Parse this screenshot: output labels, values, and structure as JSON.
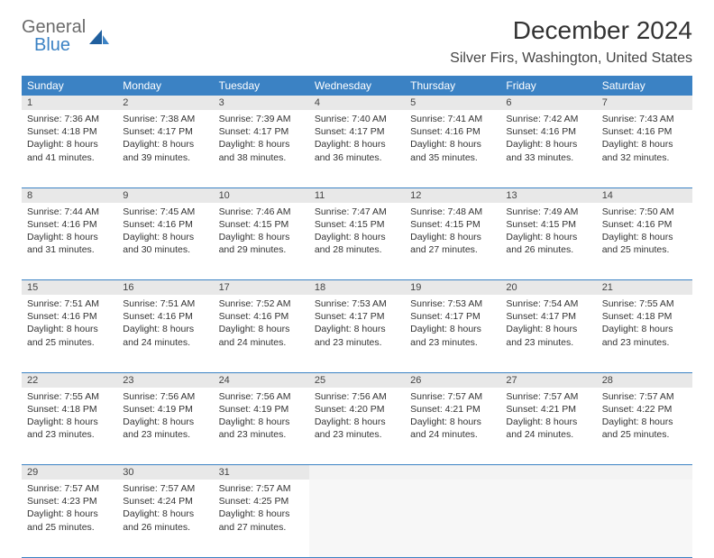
{
  "logo": {
    "general": "General",
    "blue": "Blue"
  },
  "title": "December 2024",
  "location": "Silver Firs, Washington, United States",
  "header_bg": "#3b82c4",
  "headers": [
    "Sunday",
    "Monday",
    "Tuesday",
    "Wednesday",
    "Thursday",
    "Friday",
    "Saturday"
  ],
  "weeks": [
    {
      "nums": [
        "1",
        "2",
        "3",
        "4",
        "5",
        "6",
        "7"
      ],
      "cells": [
        {
          "sunrise": "Sunrise: 7:36 AM",
          "sunset": "Sunset: 4:18 PM",
          "day1": "Daylight: 8 hours",
          "day2": "and 41 minutes."
        },
        {
          "sunrise": "Sunrise: 7:38 AM",
          "sunset": "Sunset: 4:17 PM",
          "day1": "Daylight: 8 hours",
          "day2": "and 39 minutes."
        },
        {
          "sunrise": "Sunrise: 7:39 AM",
          "sunset": "Sunset: 4:17 PM",
          "day1": "Daylight: 8 hours",
          "day2": "and 38 minutes."
        },
        {
          "sunrise": "Sunrise: 7:40 AM",
          "sunset": "Sunset: 4:17 PM",
          "day1": "Daylight: 8 hours",
          "day2": "and 36 minutes."
        },
        {
          "sunrise": "Sunrise: 7:41 AM",
          "sunset": "Sunset: 4:16 PM",
          "day1": "Daylight: 8 hours",
          "day2": "and 35 minutes."
        },
        {
          "sunrise": "Sunrise: 7:42 AM",
          "sunset": "Sunset: 4:16 PM",
          "day1": "Daylight: 8 hours",
          "day2": "and 33 minutes."
        },
        {
          "sunrise": "Sunrise: 7:43 AM",
          "sunset": "Sunset: 4:16 PM",
          "day1": "Daylight: 8 hours",
          "day2": "and 32 minutes."
        }
      ]
    },
    {
      "nums": [
        "8",
        "9",
        "10",
        "11",
        "12",
        "13",
        "14"
      ],
      "cells": [
        {
          "sunrise": "Sunrise: 7:44 AM",
          "sunset": "Sunset: 4:16 PM",
          "day1": "Daylight: 8 hours",
          "day2": "and 31 minutes."
        },
        {
          "sunrise": "Sunrise: 7:45 AM",
          "sunset": "Sunset: 4:16 PM",
          "day1": "Daylight: 8 hours",
          "day2": "and 30 minutes."
        },
        {
          "sunrise": "Sunrise: 7:46 AM",
          "sunset": "Sunset: 4:15 PM",
          "day1": "Daylight: 8 hours",
          "day2": "and 29 minutes."
        },
        {
          "sunrise": "Sunrise: 7:47 AM",
          "sunset": "Sunset: 4:15 PM",
          "day1": "Daylight: 8 hours",
          "day2": "and 28 minutes."
        },
        {
          "sunrise": "Sunrise: 7:48 AM",
          "sunset": "Sunset: 4:15 PM",
          "day1": "Daylight: 8 hours",
          "day2": "and 27 minutes."
        },
        {
          "sunrise": "Sunrise: 7:49 AM",
          "sunset": "Sunset: 4:15 PM",
          "day1": "Daylight: 8 hours",
          "day2": "and 26 minutes."
        },
        {
          "sunrise": "Sunrise: 7:50 AM",
          "sunset": "Sunset: 4:16 PM",
          "day1": "Daylight: 8 hours",
          "day2": "and 25 minutes."
        }
      ]
    },
    {
      "nums": [
        "15",
        "16",
        "17",
        "18",
        "19",
        "20",
        "21"
      ],
      "cells": [
        {
          "sunrise": "Sunrise: 7:51 AM",
          "sunset": "Sunset: 4:16 PM",
          "day1": "Daylight: 8 hours",
          "day2": "and 25 minutes."
        },
        {
          "sunrise": "Sunrise: 7:51 AM",
          "sunset": "Sunset: 4:16 PM",
          "day1": "Daylight: 8 hours",
          "day2": "and 24 minutes."
        },
        {
          "sunrise": "Sunrise: 7:52 AM",
          "sunset": "Sunset: 4:16 PM",
          "day1": "Daylight: 8 hours",
          "day2": "and 24 minutes."
        },
        {
          "sunrise": "Sunrise: 7:53 AM",
          "sunset": "Sunset: 4:17 PM",
          "day1": "Daylight: 8 hours",
          "day2": "and 23 minutes."
        },
        {
          "sunrise": "Sunrise: 7:53 AM",
          "sunset": "Sunset: 4:17 PM",
          "day1": "Daylight: 8 hours",
          "day2": "and 23 minutes."
        },
        {
          "sunrise": "Sunrise: 7:54 AM",
          "sunset": "Sunset: 4:17 PM",
          "day1": "Daylight: 8 hours",
          "day2": "and 23 minutes."
        },
        {
          "sunrise": "Sunrise: 7:55 AM",
          "sunset": "Sunset: 4:18 PM",
          "day1": "Daylight: 8 hours",
          "day2": "and 23 minutes."
        }
      ]
    },
    {
      "nums": [
        "22",
        "23",
        "24",
        "25",
        "26",
        "27",
        "28"
      ],
      "cells": [
        {
          "sunrise": "Sunrise: 7:55 AM",
          "sunset": "Sunset: 4:18 PM",
          "day1": "Daylight: 8 hours",
          "day2": "and 23 minutes."
        },
        {
          "sunrise": "Sunrise: 7:56 AM",
          "sunset": "Sunset: 4:19 PM",
          "day1": "Daylight: 8 hours",
          "day2": "and 23 minutes."
        },
        {
          "sunrise": "Sunrise: 7:56 AM",
          "sunset": "Sunset: 4:19 PM",
          "day1": "Daylight: 8 hours",
          "day2": "and 23 minutes."
        },
        {
          "sunrise": "Sunrise: 7:56 AM",
          "sunset": "Sunset: 4:20 PM",
          "day1": "Daylight: 8 hours",
          "day2": "and 23 minutes."
        },
        {
          "sunrise": "Sunrise: 7:57 AM",
          "sunset": "Sunset: 4:21 PM",
          "day1": "Daylight: 8 hours",
          "day2": "and 24 minutes."
        },
        {
          "sunrise": "Sunrise: 7:57 AM",
          "sunset": "Sunset: 4:21 PM",
          "day1": "Daylight: 8 hours",
          "day2": "and 24 minutes."
        },
        {
          "sunrise": "Sunrise: 7:57 AM",
          "sunset": "Sunset: 4:22 PM",
          "day1": "Daylight: 8 hours",
          "day2": "and 25 minutes."
        }
      ]
    },
    {
      "nums": [
        "29",
        "30",
        "31",
        "",
        "",
        "",
        ""
      ],
      "cells": [
        {
          "sunrise": "Sunrise: 7:57 AM",
          "sunset": "Sunset: 4:23 PM",
          "day1": "Daylight: 8 hours",
          "day2": "and 25 minutes."
        },
        {
          "sunrise": "Sunrise: 7:57 AM",
          "sunset": "Sunset: 4:24 PM",
          "day1": "Daylight: 8 hours",
          "day2": "and 26 minutes."
        },
        {
          "sunrise": "Sunrise: 7:57 AM",
          "sunset": "Sunset: 4:25 PM",
          "day1": "Daylight: 8 hours",
          "day2": "and 27 minutes."
        },
        null,
        null,
        null,
        null
      ]
    }
  ]
}
